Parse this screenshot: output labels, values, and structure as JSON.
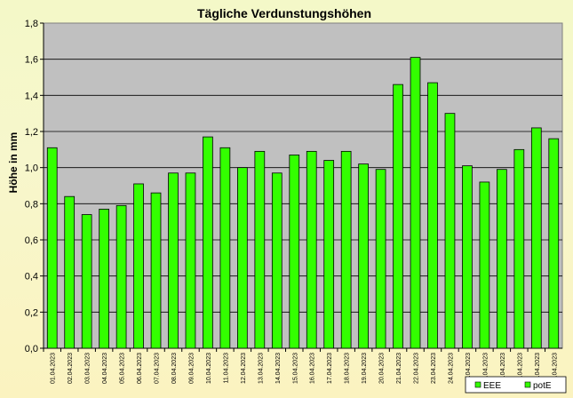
{
  "chart_data": {
    "type": "bar",
    "title": "Tägliche Verdunstungshöhen",
    "ylabel": "Höhe in mm",
    "xlabel": "",
    "ylim": [
      0,
      1.8
    ],
    "ytick_step": 0.2,
    "ytick_labels": [
      "0,0",
      "0,2",
      "0,4",
      "0,6",
      "0,8",
      "1,0",
      "1,2",
      "1,4",
      "1,6",
      "1,8"
    ],
    "grid": true,
    "plot_background": "#c0c0c0",
    "bar_color": "#33ff00",
    "categories": [
      "01.04.2023",
      "02.04.2023",
      "03.04.2023",
      "04.04.2023",
      "05.04.2023",
      "06.04.2023",
      "07.04.2023",
      "08.04.2023",
      "09.04.2023",
      "10.04.2023",
      "11.04.2023",
      "12.04.2023",
      "13.04.2023",
      "14.04.2023",
      "15.04.2023",
      "16.04.2023",
      "17.04.2023",
      "18.04.2023",
      "19.04.2023",
      "20.04.2023",
      "21.04.2023",
      "22.04.2023",
      "23.04.2023",
      "24.04.2023",
      "25.04.2023",
      "26.04.2023",
      "27.04.2023",
      "28.04.2023",
      "29.04.2023",
      "30.04.2023"
    ],
    "series": [
      {
        "name": "potE",
        "color": "#33ff00",
        "values": [
          1.11,
          0.84,
          0.74,
          0.77,
          0.79,
          0.91,
          0.86,
          0.97,
          0.97,
          1.17,
          1.11,
          1.0,
          1.09,
          0.97,
          1.07,
          1.09,
          1.04,
          1.09,
          1.02,
          0.99,
          1.46,
          1.61,
          1.47,
          1.3,
          1.01,
          0.92,
          0.99,
          1.1,
          1.22,
          1.16
        ]
      }
    ],
    "legend": {
      "placement": "bottom-right",
      "entries": [
        {
          "name": "EEE",
          "color": "#33ff00"
        },
        {
          "name": "potE",
          "color": "#33ff00"
        }
      ]
    }
  }
}
